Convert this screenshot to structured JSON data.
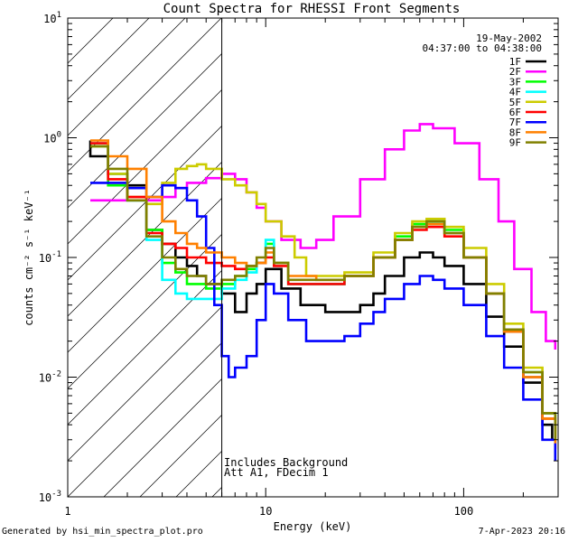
{
  "chart_data": {
    "type": "line",
    "title": "Count Spectra for RHESSI Front Segments",
    "xlabel": "Energy (keV)",
    "ylabel": "counts cm⁻² s⁻¹ keV⁻¹",
    "x_scale": "log",
    "y_scale": "log",
    "xlim": [
      1,
      300
    ],
    "ylim": [
      0.001,
      10
    ],
    "x_ticks": [
      {
        "value": 1,
        "label": "1"
      },
      {
        "value": 10,
        "label": "10"
      },
      {
        "value": 100,
        "label": "100"
      }
    ],
    "y_ticks": [
      {
        "value": 0.001,
        "base": "10",
        "exp": "-3"
      },
      {
        "value": 0.01,
        "base": "10",
        "exp": "-2"
      },
      {
        "value": 0.1,
        "base": "10",
        "exp": "-1"
      },
      {
        "value": 1,
        "base": "10",
        "exp": "0"
      },
      {
        "value": 10,
        "base": "10",
        "exp": "1"
      }
    ],
    "date_line": "19-May-2002",
    "time_line": "04:37:00 to 04:38:00",
    "attenuator_marker_keV": 6,
    "annotations": [
      "Includes Background",
      "Att A1, FDecim 1"
    ],
    "legend_position": "top-right",
    "series": [
      {
        "name": "1F",
        "color": "#000000",
        "points": [
          [
            1.3,
            0.95
          ],
          [
            1.3,
            0.7
          ],
          [
            1.6,
            0.7
          ],
          [
            1.6,
            0.5
          ],
          [
            2,
            0.4
          ],
          [
            2.5,
            0.17
          ],
          [
            3,
            0.13
          ],
          [
            3.5,
            0.1
          ],
          [
            4,
            0.085
          ],
          [
            4.5,
            0.07
          ],
          [
            5,
            0.06
          ],
          [
            6,
            0.05
          ],
          [
            7,
            0.035
          ],
          [
            8,
            0.05
          ],
          [
            9,
            0.06
          ],
          [
            10,
            0.08
          ],
          [
            12,
            0.055
          ],
          [
            15,
            0.04
          ],
          [
            20,
            0.035
          ],
          [
            25,
            0.035
          ],
          [
            30,
            0.04
          ],
          [
            35,
            0.05
          ],
          [
            40,
            0.07
          ],
          [
            50,
            0.1
          ],
          [
            60,
            0.11
          ],
          [
            70,
            0.1
          ],
          [
            80,
            0.085
          ],
          [
            100,
            0.06
          ],
          [
            130,
            0.032
          ],
          [
            160,
            0.018
          ],
          [
            200,
            0.009
          ],
          [
            250,
            0.004
          ],
          [
            280,
            0.003
          ]
        ]
      },
      {
        "name": "2F",
        "color": "#ff00ff",
        "points": [
          [
            1.3,
            0.3
          ],
          [
            2,
            0.3
          ],
          [
            3,
            0.32
          ],
          [
            3.5,
            0.38
          ],
          [
            4,
            0.42
          ],
          [
            5,
            0.46
          ],
          [
            6,
            0.5
          ],
          [
            7,
            0.45
          ],
          [
            8,
            0.35
          ],
          [
            9,
            0.26
          ],
          [
            10,
            0.2
          ],
          [
            12,
            0.14
          ],
          [
            15,
            0.12
          ],
          [
            18,
            0.14
          ],
          [
            22,
            0.22
          ],
          [
            30,
            0.45
          ],
          [
            40,
            0.8
          ],
          [
            50,
            1.15
          ],
          [
            60,
            1.3
          ],
          [
            70,
            1.2
          ],
          [
            90,
            0.9
          ],
          [
            120,
            0.45
          ],
          [
            150,
            0.2
          ],
          [
            180,
            0.08
          ],
          [
            220,
            0.035
          ],
          [
            260,
            0.02
          ],
          [
            290,
            0.017
          ]
        ]
      },
      {
        "name": "3F",
        "color": "#00ff00",
        "points": [
          [
            1.3,
            0.85
          ],
          [
            1.6,
            0.4
          ],
          [
            2,
            0.3
          ],
          [
            2.5,
            0.17
          ],
          [
            3,
            0.09
          ],
          [
            3.5,
            0.075
          ],
          [
            4,
            0.06
          ],
          [
            5,
            0.055
          ],
          [
            6,
            0.06
          ],
          [
            7,
            0.07
          ],
          [
            8,
            0.08
          ],
          [
            9,
            0.09
          ],
          [
            10,
            0.13
          ],
          [
            11,
            0.09
          ],
          [
            13,
            0.06
          ],
          [
            18,
            0.06
          ],
          [
            25,
            0.07
          ],
          [
            35,
            0.1
          ],
          [
            45,
            0.15
          ],
          [
            55,
            0.19
          ],
          [
            65,
            0.2
          ],
          [
            80,
            0.17
          ],
          [
            100,
            0.1
          ],
          [
            130,
            0.05
          ],
          [
            160,
            0.025
          ],
          [
            200,
            0.011
          ],
          [
            250,
            0.005
          ],
          [
            290,
            0.003
          ]
        ]
      },
      {
        "name": "4F",
        "color": "#00ffff",
        "points": [
          [
            1.3,
            0.9
          ],
          [
            1.6,
            0.5
          ],
          [
            2,
            0.3
          ],
          [
            2.5,
            0.14
          ],
          [
            3,
            0.065
          ],
          [
            3.5,
            0.05
          ],
          [
            4,
            0.045
          ],
          [
            5,
            0.045
          ],
          [
            6,
            0.055
          ],
          [
            7,
            0.065
          ],
          [
            8,
            0.075
          ],
          [
            9,
            0.09
          ],
          [
            10,
            0.14
          ],
          [
            11,
            0.09
          ],
          [
            13,
            0.06
          ],
          [
            18,
            0.06
          ],
          [
            25,
            0.07
          ],
          [
            35,
            0.1
          ],
          [
            45,
            0.14
          ],
          [
            55,
            0.18
          ],
          [
            65,
            0.19
          ],
          [
            80,
            0.16
          ],
          [
            100,
            0.1
          ],
          [
            130,
            0.05
          ],
          [
            160,
            0.024
          ],
          [
            200,
            0.01
          ],
          [
            250,
            0.005
          ],
          [
            290,
            0.0028
          ]
        ]
      },
      {
        "name": "5F",
        "color": "#cccc00",
        "points": [
          [
            1.3,
            0.85
          ],
          [
            1.6,
            0.5
          ],
          [
            2,
            0.32
          ],
          [
            2.5,
            0.28
          ],
          [
            3,
            0.42
          ],
          [
            3.5,
            0.55
          ],
          [
            4,
            0.58
          ],
          [
            4.5,
            0.6
          ],
          [
            5,
            0.55
          ],
          [
            6,
            0.45
          ],
          [
            7,
            0.4
          ],
          [
            8,
            0.35
          ],
          [
            9,
            0.28
          ],
          [
            10,
            0.2
          ],
          [
            12,
            0.15
          ],
          [
            14,
            0.1
          ],
          [
            16,
            0.07
          ],
          [
            20,
            0.07
          ],
          [
            25,
            0.075
          ],
          [
            35,
            0.11
          ],
          [
            45,
            0.16
          ],
          [
            55,
            0.2
          ],
          [
            65,
            0.21
          ],
          [
            80,
            0.18
          ],
          [
            100,
            0.12
          ],
          [
            130,
            0.06
          ],
          [
            160,
            0.028
          ],
          [
            200,
            0.012
          ],
          [
            250,
            0.005
          ],
          [
            290,
            0.003
          ]
        ]
      },
      {
        "name": "6F",
        "color": "#ff0000",
        "points": [
          [
            1.3,
            0.9
          ],
          [
            1.6,
            0.45
          ],
          [
            2,
            0.32
          ],
          [
            2.5,
            0.16
          ],
          [
            3,
            0.13
          ],
          [
            3.5,
            0.12
          ],
          [
            4,
            0.1
          ],
          [
            5,
            0.09
          ],
          [
            6,
            0.085
          ],
          [
            7,
            0.08
          ],
          [
            8,
            0.085
          ],
          [
            9,
            0.09
          ],
          [
            10,
            0.1
          ],
          [
            11,
            0.085
          ],
          [
            13,
            0.06
          ],
          [
            18,
            0.06
          ],
          [
            25,
            0.07
          ],
          [
            35,
            0.1
          ],
          [
            45,
            0.14
          ],
          [
            55,
            0.17
          ],
          [
            65,
            0.18
          ],
          [
            80,
            0.15
          ],
          [
            100,
            0.1
          ],
          [
            130,
            0.05
          ],
          [
            160,
            0.024
          ],
          [
            200,
            0.01
          ],
          [
            250,
            0.0045
          ],
          [
            290,
            0.0025
          ]
        ]
      },
      {
        "name": "7F",
        "color": "#0000ff",
        "points": [
          [
            1.3,
            0.42
          ],
          [
            1.6,
            0.42
          ],
          [
            2,
            0.38
          ],
          [
            2.5,
            0.32
          ],
          [
            3,
            0.4
          ],
          [
            3.5,
            0.38
          ],
          [
            4,
            0.3
          ],
          [
            4.5,
            0.22
          ],
          [
            5,
            0.12
          ],
          [
            5.5,
            0.04
          ],
          [
            6,
            0.015
          ],
          [
            6.5,
            0.01
          ],
          [
            7,
            0.012
          ],
          [
            8,
            0.015
          ],
          [
            9,
            0.03
          ],
          [
            10,
            0.06
          ],
          [
            11,
            0.05
          ],
          [
            13,
            0.03
          ],
          [
            16,
            0.02
          ],
          [
            20,
            0.02
          ],
          [
            25,
            0.022
          ],
          [
            30,
            0.028
          ],
          [
            35,
            0.035
          ],
          [
            40,
            0.045
          ],
          [
            50,
            0.06
          ],
          [
            60,
            0.07
          ],
          [
            70,
            0.065
          ],
          [
            80,
            0.055
          ],
          [
            100,
            0.04
          ],
          [
            130,
            0.022
          ],
          [
            160,
            0.012
          ],
          [
            200,
            0.0065
          ],
          [
            250,
            0.003
          ],
          [
            290,
            0.002
          ]
        ]
      },
      {
        "name": "8F",
        "color": "#ff8000",
        "points": [
          [
            1.3,
            0.95
          ],
          [
            1.6,
            0.7
          ],
          [
            2,
            0.55
          ],
          [
            2.5,
            0.32
          ],
          [
            3,
            0.2
          ],
          [
            3.5,
            0.16
          ],
          [
            4,
            0.13
          ],
          [
            4.5,
            0.12
          ],
          [
            5,
            0.11
          ],
          [
            6,
            0.1
          ],
          [
            7,
            0.09
          ],
          [
            8,
            0.085
          ],
          [
            9,
            0.09
          ],
          [
            10,
            0.11
          ],
          [
            11,
            0.09
          ],
          [
            13,
            0.07
          ],
          [
            18,
            0.065
          ],
          [
            25,
            0.07
          ],
          [
            35,
            0.1
          ],
          [
            45,
            0.14
          ],
          [
            55,
            0.18
          ],
          [
            65,
            0.19
          ],
          [
            80,
            0.16
          ],
          [
            100,
            0.1
          ],
          [
            130,
            0.05
          ],
          [
            160,
            0.024
          ],
          [
            200,
            0.01
          ],
          [
            250,
            0.0045
          ],
          [
            290,
            0.0028
          ]
        ]
      },
      {
        "name": "9F",
        "color": "#808000",
        "points": [
          [
            1.3,
            0.85
          ],
          [
            1.6,
            0.55
          ],
          [
            2,
            0.3
          ],
          [
            2.5,
            0.15
          ],
          [
            3,
            0.1
          ],
          [
            3.5,
            0.08
          ],
          [
            4,
            0.07
          ],
          [
            5,
            0.06
          ],
          [
            6,
            0.065
          ],
          [
            7,
            0.07
          ],
          [
            8,
            0.085
          ],
          [
            9,
            0.1
          ],
          [
            10,
            0.12
          ],
          [
            11,
            0.09
          ],
          [
            13,
            0.065
          ],
          [
            18,
            0.065
          ],
          [
            25,
            0.07
          ],
          [
            35,
            0.1
          ],
          [
            45,
            0.14
          ],
          [
            55,
            0.18
          ],
          [
            65,
            0.2
          ],
          [
            80,
            0.16
          ],
          [
            100,
            0.1
          ],
          [
            130,
            0.05
          ],
          [
            160,
            0.025
          ],
          [
            200,
            0.011
          ],
          [
            250,
            0.005
          ],
          [
            290,
            0.003
          ]
        ]
      }
    ]
  },
  "footer": {
    "left": "Generated by hsi_min_spectra_plot.pro",
    "right": "7-Apr-2023 20:16"
  }
}
